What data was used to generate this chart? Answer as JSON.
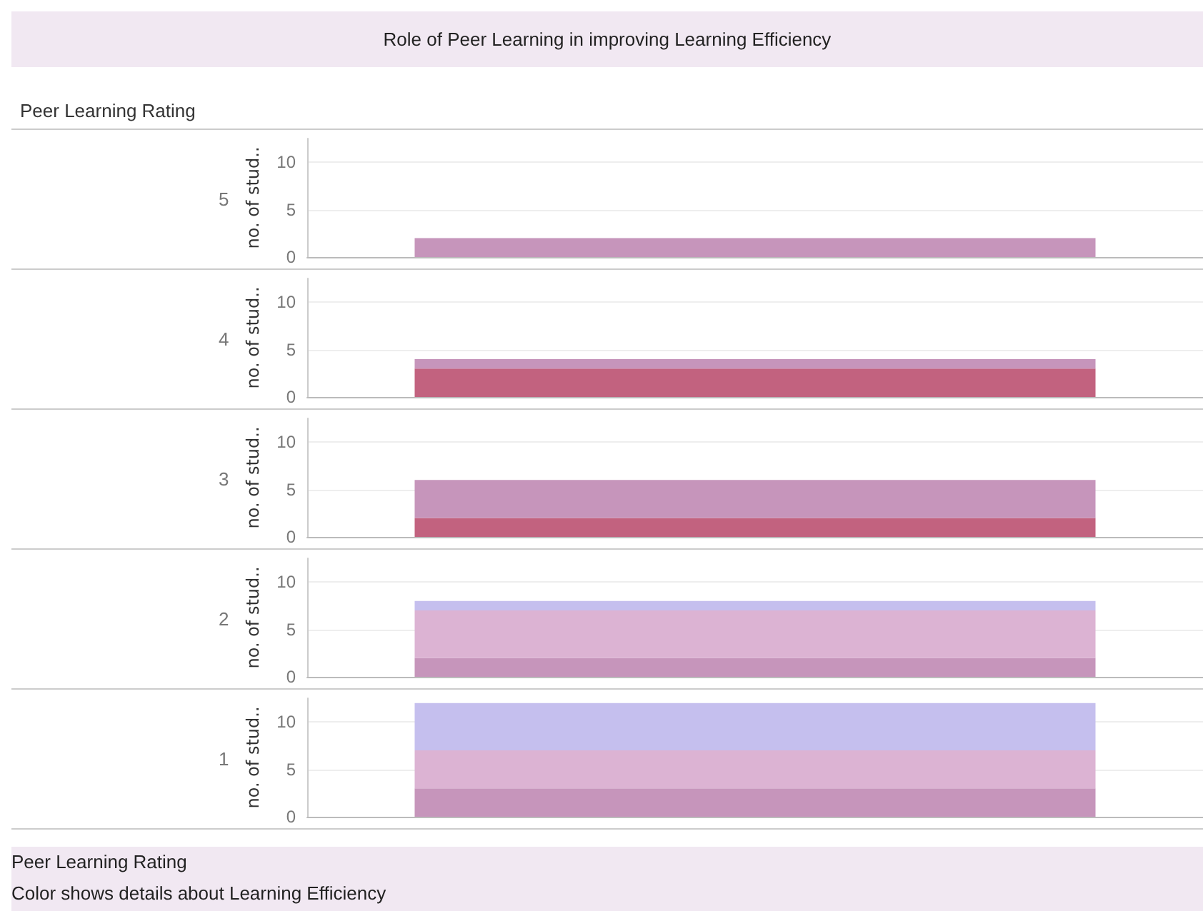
{
  "chart_data": [
    {
      "type": "bar",
      "title": "Role of Peer Learning in improving Learning Efficiency",
      "annotations": [
        "Peer Learning Rating"
      ],
      "subtitle": "5",
      "categories": [
        null
      ],
      "ylabel": "no. of stud..",
      "ylim": [
        0,
        12.5
      ],
      "yticks": [
        0,
        5,
        10
      ],
      "grid": "y",
      "stacked": true,
      "series": [
        {
          "color": "#c2627f",
          "values": [
            null
          ]
        },
        {
          "color": "#c695bb",
          "values": [
            2
          ]
        },
        {
          "color": "#dcb3d3",
          "values": [
            null
          ]
        },
        {
          "color": "#c5bfee",
          "values": [
            null
          ]
        }
      ]
    },
    {
      "type": "bar",
      "subtitle": "4",
      "categories": [
        null
      ],
      "ylabel": "no. of stud..",
      "ylim": [
        0,
        12.5
      ],
      "yticks": [
        0,
        5,
        10
      ],
      "grid": "y",
      "stacked": true,
      "series": [
        {
          "color": "#c2627f",
          "values": [
            3
          ]
        },
        {
          "color": "#c695bb",
          "values": [
            1
          ]
        },
        {
          "color": "#dcb3d3",
          "values": [
            null
          ]
        },
        {
          "color": "#c5bfee",
          "values": [
            null
          ]
        }
      ]
    },
    {
      "type": "bar",
      "subtitle": "3",
      "categories": [
        null
      ],
      "ylabel": "no. of stud..",
      "ylim": [
        0,
        12.5
      ],
      "yticks": [
        0,
        5,
        10
      ],
      "grid": "y",
      "stacked": true,
      "series": [
        {
          "color": "#c2627f",
          "values": [
            2
          ]
        },
        {
          "color": "#c695bb",
          "values": [
            4
          ]
        },
        {
          "color": "#dcb3d3",
          "values": [
            null
          ]
        },
        {
          "color": "#c5bfee",
          "values": [
            null
          ]
        }
      ]
    },
    {
      "type": "bar",
      "subtitle": "2",
      "categories": [
        null
      ],
      "ylabel": "no. of stud..",
      "ylim": [
        0,
        12.5
      ],
      "yticks": [
        0,
        5,
        10
      ],
      "grid": "y",
      "stacked": true,
      "series": [
        {
          "color": "#c2627f",
          "values": [
            null
          ]
        },
        {
          "color": "#c695bb",
          "values": [
            2
          ]
        },
        {
          "color": "#dcb3d3",
          "values": [
            5
          ]
        },
        {
          "color": "#c5bfee",
          "values": [
            1
          ]
        }
      ]
    },
    {
      "type": "bar",
      "subtitle": "1",
      "categories": [
        null
      ],
      "ylabel": "no. of stud..",
      "ylim": [
        0,
        12.5
      ],
      "yticks": [
        0,
        5,
        10
      ],
      "grid": "y",
      "stacked": true,
      "annotations": [
        "Peer Learning Rating",
        "Color shows details about Learning Efficiency"
      ],
      "series": [
        {
          "color": "#c2627f",
          "values": [
            null
          ]
        },
        {
          "color": "#c695bb",
          "values": [
            3
          ]
        },
        {
          "color": "#dcb3d3",
          "values": [
            4
          ]
        },
        {
          "color": "#c5bfee",
          "values": [
            5
          ]
        }
      ]
    }
  ]
}
